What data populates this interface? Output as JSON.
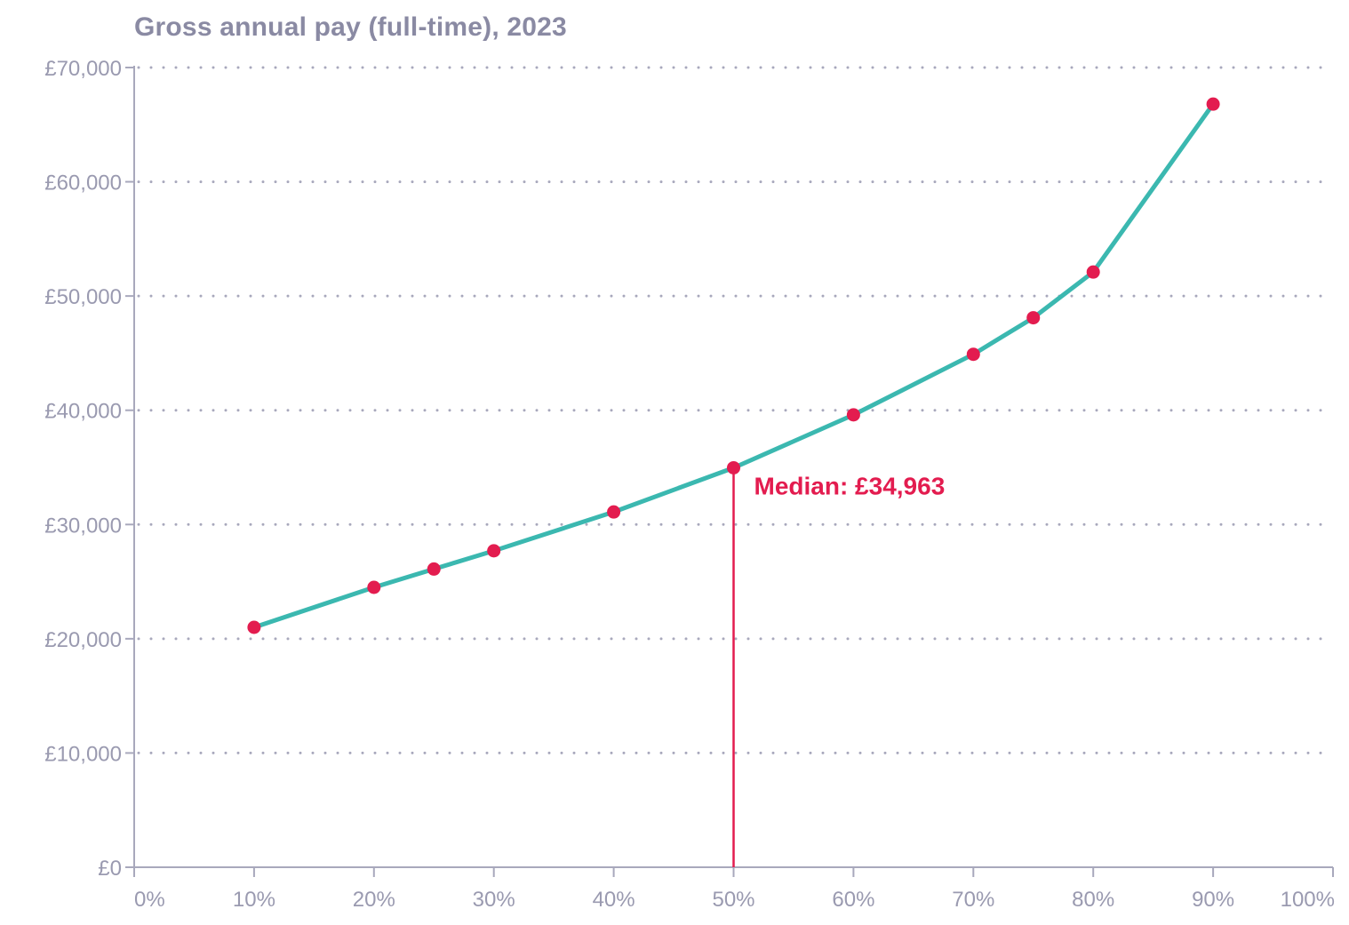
{
  "chart_data": {
    "type": "line",
    "title": "Gross annual pay (full-time), 2023",
    "xlabel": "",
    "ylabel": "",
    "x_tick_labels": [
      "0%",
      "10%",
      "20%",
      "30%",
      "40%",
      "50%",
      "60%",
      "70%",
      "80%",
      "90%",
      "100%"
    ],
    "y_tick_labels": [
      "£0",
      "£10,000",
      "£20,000",
      "£30,000",
      "£40,000",
      "£50,000",
      "£60,000",
      "£70,000"
    ],
    "xlim": [
      0,
      100
    ],
    "ylim": [
      0,
      70000
    ],
    "grid": "horizontal dotted",
    "series": [
      {
        "x": [
          10,
          20,
          25,
          30,
          40,
          50,
          60,
          70,
          75,
          80,
          90
        ],
        "y": [
          21000,
          24500,
          26100,
          27700,
          31100,
          34963,
          39600,
          44900,
          48100,
          52100,
          66800
        ]
      }
    ],
    "annotations": [
      {
        "x": 50,
        "y": 34963,
        "text": "Median: £34,963"
      }
    ],
    "colors": {
      "line": "#3bb8b0",
      "markers": "#e31c4f",
      "annotation": "#e31c4f",
      "axis": "#a8a8bc",
      "grid": "#a8a8bc",
      "title": "#8a8aa3",
      "tick_text": "#9a9ab0"
    }
  }
}
